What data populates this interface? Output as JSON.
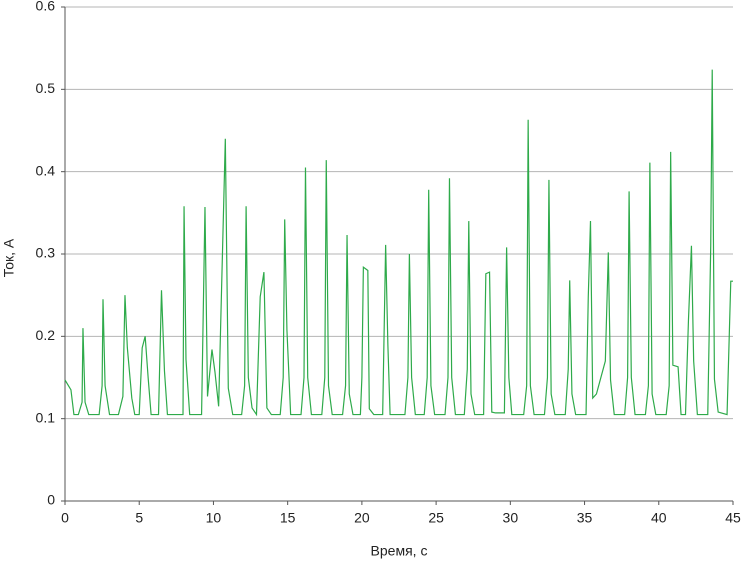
{
  "chart_data": {
    "type": "line",
    "xlabel": "Время, с",
    "ylabel": "Ток, А",
    "xlim": [
      0,
      45
    ],
    "xticks": [
      0,
      5,
      10,
      15,
      20,
      25,
      30,
      35,
      40,
      45
    ],
    "ylim": [
      0,
      0.6
    ],
    "yticks": [
      0,
      0.1,
      0.2,
      0.3,
      0.4,
      0.5,
      0.6
    ],
    "grid": true,
    "x": [
      0,
      0.4,
      0.6,
      0.9,
      1.15,
      1.21,
      1.35,
      1.6,
      2.3,
      2.5,
      2.56,
      2.7,
      3.0,
      3.6,
      3.9,
      4.04,
      4.2,
      4.5,
      4.7,
      5.0,
      5.2,
      5.4,
      5.6,
      5.8,
      6.3,
      6.5,
      6.7,
      6.9,
      7.7,
      7.95,
      8.02,
      8.15,
      8.4,
      9.2,
      9.43,
      9.6,
      9.9,
      10.1,
      10.35,
      10.8,
      11.0,
      11.3,
      11.9,
      12.1,
      12.2,
      12.35,
      12.6,
      12.9,
      13.15,
      13.4,
      13.6,
      13.9,
      14.5,
      14.7,
      14.8,
      14.95,
      15.2,
      15.9,
      16.1,
      16.2,
      16.35,
      16.6,
      17.3,
      17.5,
      17.6,
      17.75,
      18.0,
      18.7,
      18.9,
      19.0,
      19.15,
      19.4,
      19.9,
      20.0,
      20.1,
      20.4,
      20.5,
      20.8,
      21.4,
      21.6,
      21.75,
      21.9,
      22.9,
      23.1,
      23.2,
      23.35,
      23.6,
      24.2,
      24.4,
      24.5,
      24.65,
      24.9,
      25.6,
      25.8,
      25.9,
      26.05,
      26.3,
      26.9,
      27.1,
      27.2,
      27.35,
      27.6,
      28.2,
      28.35,
      28.6,
      28.75,
      29.0,
      29.6,
      29.75,
      29.9,
      30.1,
      30.9,
      31.1,
      31.2,
      31.35,
      31.6,
      32.3,
      32.5,
      32.6,
      32.75,
      33.0,
      33.7,
      33.9,
      34.0,
      34.15,
      34.4,
      35.1,
      35.25,
      35.4,
      35.55,
      35.8,
      36.4,
      36.6,
      36.75,
      37.0,
      37.7,
      37.9,
      38.0,
      38.15,
      38.4,
      39.1,
      39.3,
      39.4,
      39.55,
      39.8,
      40.5,
      40.7,
      40.8,
      40.95,
      41.3,
      41.5,
      41.8,
      42.0,
      42.2,
      42.35,
      42.6,
      43.3,
      43.5,
      43.6,
      43.75,
      44.0,
      44.6,
      44.85,
      45
    ],
    "series": [
      {
        "color": "#2eaa4a",
        "values": [
          0.147,
          0.135,
          0.105,
          0.105,
          0.12,
          0.21,
          0.12,
          0.105,
          0.105,
          0.14,
          0.245,
          0.14,
          0.105,
          0.105,
          0.127,
          0.25,
          0.186,
          0.125,
          0.105,
          0.105,
          0.186,
          0.2,
          0.15,
          0.105,
          0.105,
          0.256,
          0.158,
          0.105,
          0.105,
          0.105,
          0.358,
          0.172,
          0.105,
          0.105,
          0.357,
          0.127,
          0.184,
          0.157,
          0.115,
          0.44,
          0.137,
          0.105,
          0.105,
          0.14,
          0.358,
          0.15,
          0.113,
          0.105,
          0.248,
          0.278,
          0.113,
          0.105,
          0.105,
          0.15,
          0.342,
          0.208,
          0.105,
          0.105,
          0.15,
          0.405,
          0.15,
          0.105,
          0.105,
          0.15,
          0.414,
          0.14,
          0.105,
          0.105,
          0.14,
          0.323,
          0.13,
          0.105,
          0.105,
          0.15,
          0.284,
          0.28,
          0.112,
          0.105,
          0.105,
          0.311,
          0.19,
          0.105,
          0.105,
          0.15,
          0.3,
          0.15,
          0.105,
          0.105,
          0.15,
          0.378,
          0.14,
          0.105,
          0.105,
          0.15,
          0.392,
          0.15,
          0.105,
          0.105,
          0.16,
          0.34,
          0.13,
          0.105,
          0.105,
          0.276,
          0.278,
          0.108,
          0.107,
          0.107,
          0.308,
          0.15,
          0.105,
          0.105,
          0.14,
          0.463,
          0.14,
          0.105,
          0.105,
          0.15,
          0.39,
          0.13,
          0.105,
          0.105,
          0.16,
          0.268,
          0.13,
          0.105,
          0.105,
          0.248,
          0.34,
          0.125,
          0.13,
          0.17,
          0.302,
          0.147,
          0.105,
          0.105,
          0.15,
          0.376,
          0.15,
          0.105,
          0.105,
          0.14,
          0.411,
          0.13,
          0.105,
          0.105,
          0.14,
          0.424,
          0.165,
          0.163,
          0.105,
          0.105,
          0.22,
          0.31,
          0.17,
          0.105,
          0.105,
          0.31,
          0.524,
          0.148,
          0.108,
          0.105,
          0.267,
          0.267
        ]
      }
    ]
  }
}
